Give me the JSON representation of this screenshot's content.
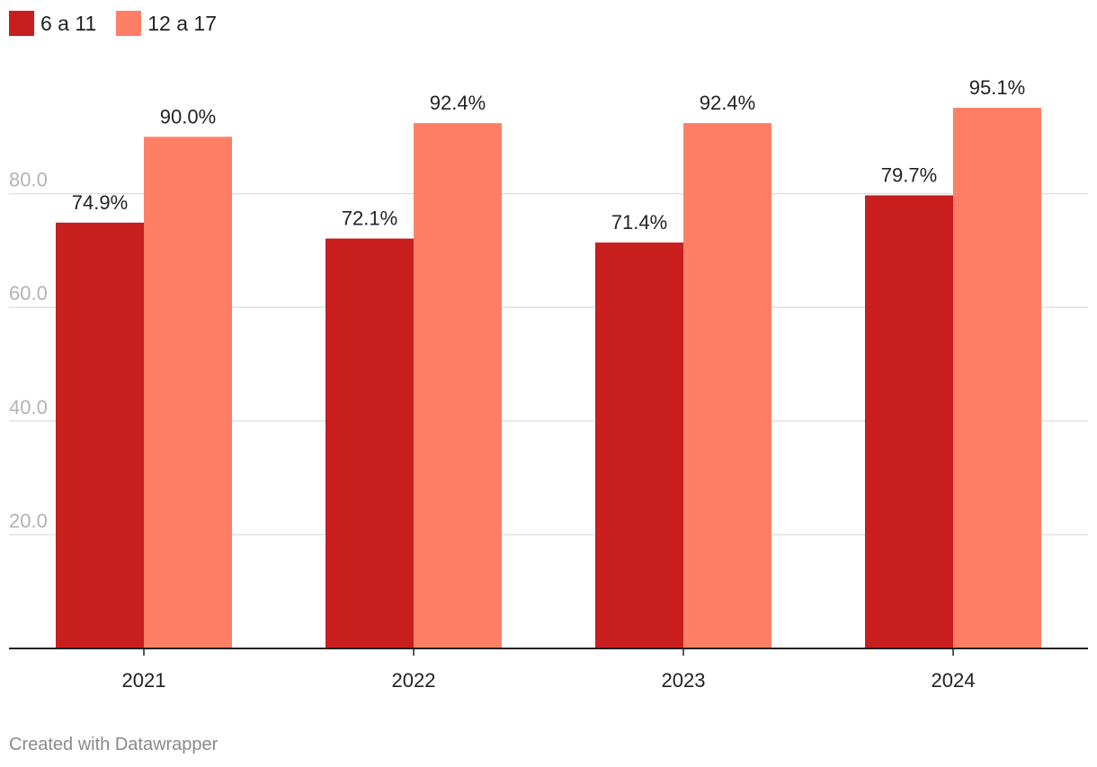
{
  "chart_data": {
    "type": "bar",
    "categories": [
      "2021",
      "2022",
      "2023",
      "2024"
    ],
    "series": [
      {
        "name": "6 a 11",
        "values": [
          74.9,
          72.1,
          71.4,
          79.7
        ],
        "color": "#c81e1e"
      },
      {
        "name": "12 a 17",
        "values": [
          90.0,
          92.4,
          92.4,
          95.1
        ],
        "color": "#ff7f66"
      }
    ],
    "data_labels": [
      [
        "74.9%",
        "72.1%",
        "71.4%",
        "79.7%"
      ],
      [
        "90.0%",
        "92.4%",
        "92.4%",
        "95.1%"
      ]
    ],
    "yticks": [
      20,
      40,
      60,
      80
    ],
    "ytick_labels": [
      "20.0",
      "40.0",
      "60.0",
      "80.0"
    ],
    "ylim": [
      0,
      100
    ],
    "grid": true,
    "legend": "top-left",
    "title": "",
    "xlabel": "",
    "ylabel": ""
  },
  "legend": {
    "items": [
      {
        "label": "6 a 11",
        "color": "#c81e1e"
      },
      {
        "label": "12 a 17",
        "color": "#ff7f66"
      }
    ]
  },
  "footer": {
    "credit": "Created with Datawrapper"
  }
}
